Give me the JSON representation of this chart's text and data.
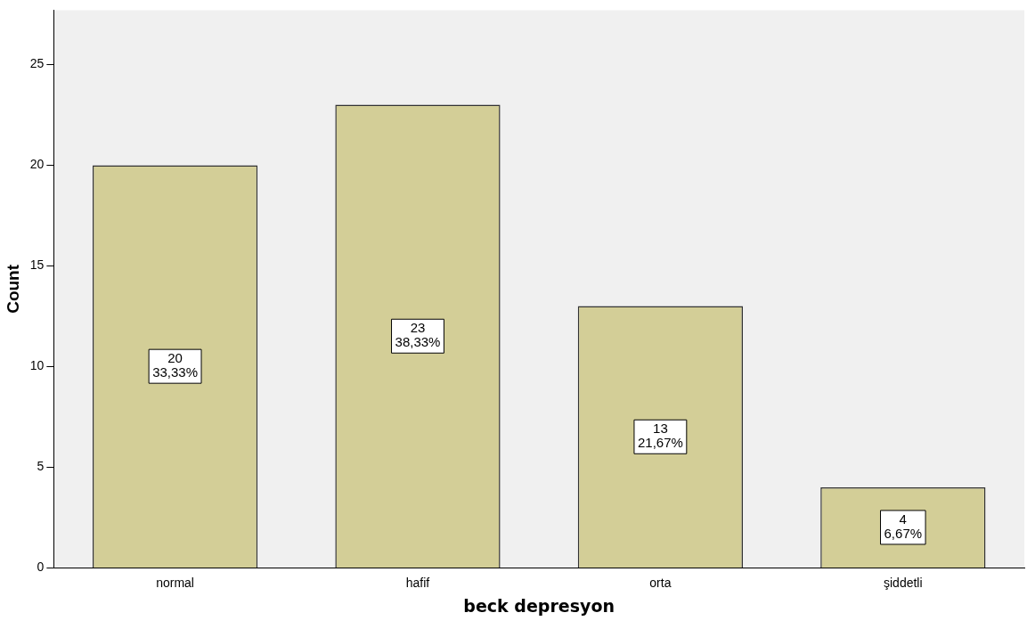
{
  "chart_data": {
    "type": "bar",
    "xlabel": "beck depresyon",
    "ylabel": "Count",
    "categories": [
      "normal",
      "hafif",
      "orta",
      "şiddetli"
    ],
    "values": [
      20,
      23,
      13,
      4
    ],
    "color": "#d3ce97",
    "value_labels": [
      "20\n33,33%",
      "23\n38,33%",
      "13\n21,67%",
      "4\n6,67%"
    ],
    "ylim": [
      0,
      27.7
    ],
    "yticks": [
      0,
      5,
      10,
      15,
      20,
      25
    ],
    "grid": false,
    "legend": false
  }
}
